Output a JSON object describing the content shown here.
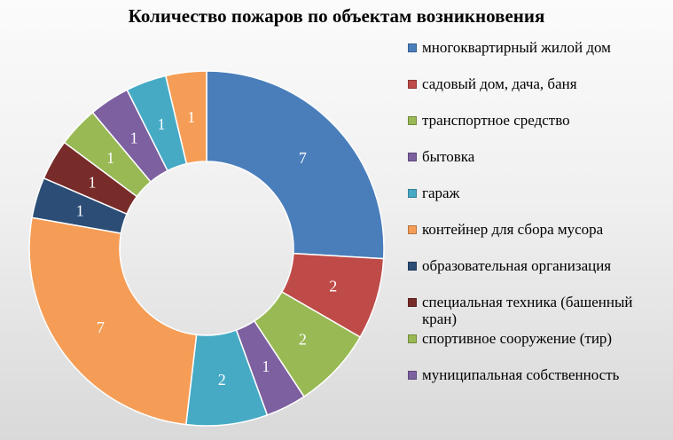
{
  "chart_data": {
    "type": "pie",
    "title": "Количество пожаров по объектам возникновения",
    "categories": [
      "многоквартирный жилой дом",
      "садовый дом, дача, баня",
      "транспортное средство",
      "бытовка",
      "гараж",
      "контейнер для сбора мусора",
      "образовательная организация",
      "специальная техника (башенный кран)",
      "спортивное сооружение (тир)",
      "муниципальная собственность",
      "",
      ""
    ],
    "values": [
      7,
      2,
      2,
      1,
      2,
      7,
      1,
      1,
      1,
      1,
      1,
      1
    ],
    "colors": [
      "#4a7ebb",
      "#be4b48",
      "#98b954",
      "#7d60a0",
      "#46aac5",
      "#f59d56",
      "#2c4d75",
      "#772c2a",
      "#98b954",
      "#7d60a0",
      "#46aac5",
      "#f59d56"
    ],
    "style": "doughnut",
    "legend_position": "right",
    "data_labels": "values"
  }
}
